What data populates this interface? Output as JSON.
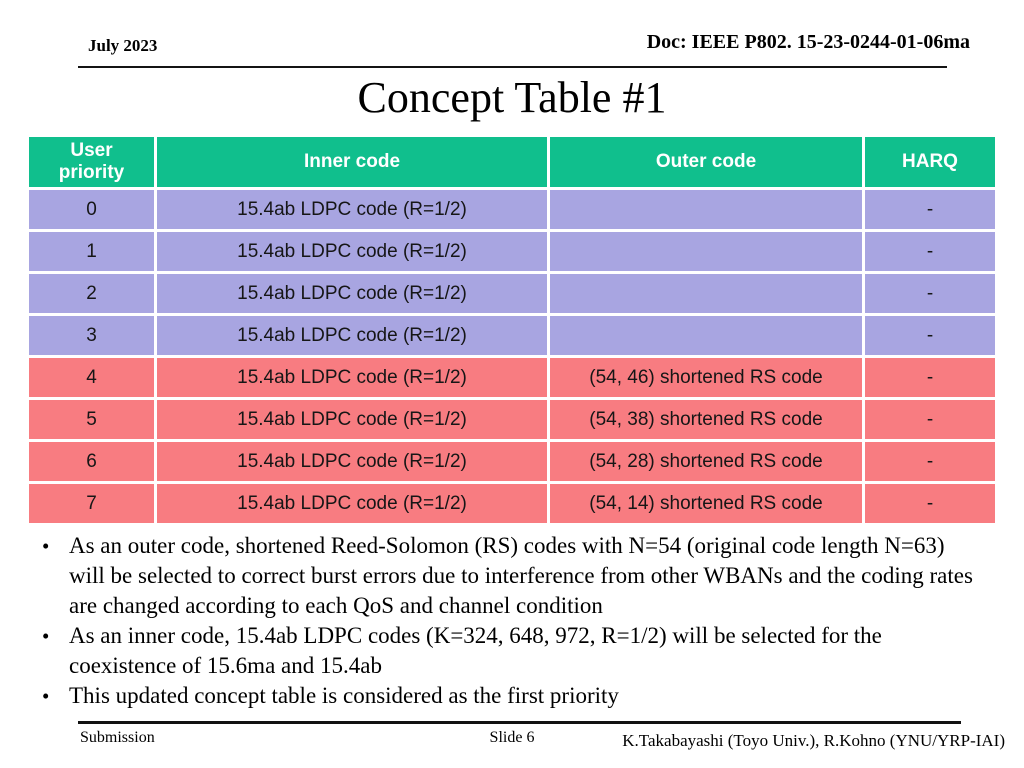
{
  "slide": {
    "date": "July 2023",
    "doc": "Doc: IEEE P802. 15-23-0244-01-06ma",
    "title": "Concept Table #1"
  },
  "table": {
    "columns": [
      "User priority",
      "Inner code",
      "Outer code",
      "HARQ"
    ],
    "rows": [
      {
        "user_priority": "0",
        "inner_code": "15.4ab LDPC code (R=1/2)",
        "outer_code": "",
        "harq": "-",
        "band": "purple"
      },
      {
        "user_priority": "1",
        "inner_code": "15.4ab LDPC code (R=1/2)",
        "outer_code": "",
        "harq": "-",
        "band": "purple"
      },
      {
        "user_priority": "2",
        "inner_code": "15.4ab LDPC code (R=1/2)",
        "outer_code": "",
        "harq": "-",
        "band": "purple"
      },
      {
        "user_priority": "3",
        "inner_code": "15.4ab LDPC code (R=1/2)",
        "outer_code": "",
        "harq": "-",
        "band": "purple"
      },
      {
        "user_priority": "4",
        "inner_code": "15.4ab LDPC code (R=1/2)",
        "outer_code": "(54, 46) shortened RS code",
        "harq": "-",
        "band": "red"
      },
      {
        "user_priority": "5",
        "inner_code": "15.4ab LDPC code (R=1/2)",
        "outer_code": "(54, 38) shortened RS code",
        "harq": "-",
        "band": "red"
      },
      {
        "user_priority": "6",
        "inner_code": "15.4ab LDPC code (R=1/2)",
        "outer_code": "(54, 28) shortened RS code",
        "harq": "-",
        "band": "red"
      },
      {
        "user_priority": "7",
        "inner_code": "15.4ab LDPC code (R=1/2)",
        "outer_code": "(54, 14) shortened RS code",
        "harq": "-",
        "band": "red"
      }
    ]
  },
  "bullets": [
    "As an outer code, shortened Reed-Solomon (RS) codes with N=54 (original code length N=63) will be selected to correct burst errors due to interference from other WBANs and the coding rates are changed according to each QoS and channel condition",
    "As an inner code, 15.4ab LDPC codes (K=324, 648, 972, R=1/2) will be selected for the coexistence of 15.6ma and 15.4ab",
    "This updated concept table is considered as the first priority"
  ],
  "footer": {
    "left": "Submission",
    "center": "Slide 6",
    "right": "K.Takabayashi (Toyo Univ.), R.Kohno (YNU/YRP-IAI)"
  },
  "colors": {
    "header_bg": "#10BF8D",
    "row_purple": "#A8A5E1",
    "row_red": "#F87C81"
  }
}
